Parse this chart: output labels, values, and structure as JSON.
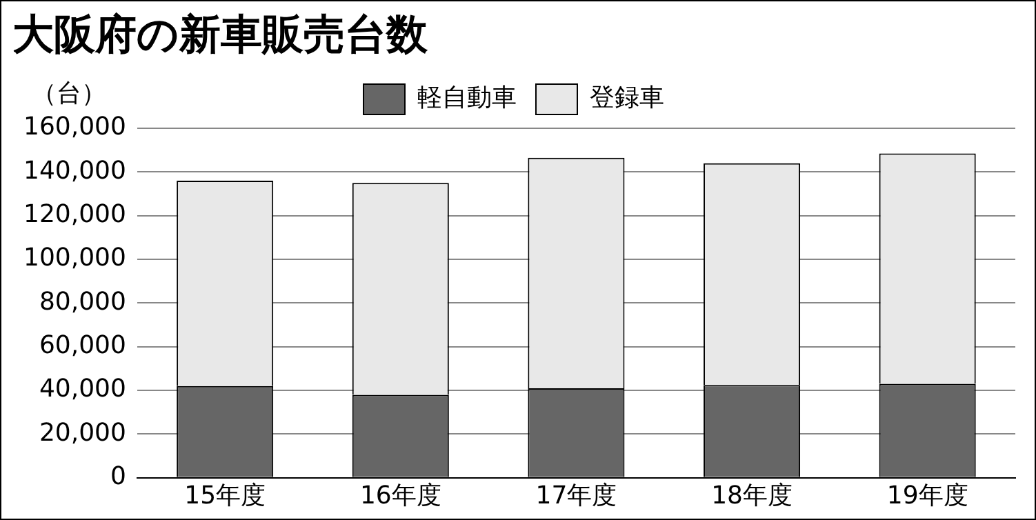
{
  "chart_data": {
    "type": "bar",
    "title": "大阪府の新車販売台数",
    "ylabel": "（台）",
    "categories": [
      "15年度",
      "16年度",
      "17年度",
      "18年度",
      "19年度"
    ],
    "stacked": true,
    "series": [
      {
        "name": "軽自動車",
        "color": "#666666",
        "values": [
          42000,
          38000,
          41000,
          42500,
          43000
        ]
      },
      {
        "name": "登録車",
        "color": "#e8e8e8",
        "values": [
          94000,
          97000,
          105500,
          101500,
          105500
        ]
      }
    ],
    "ylim": [
      0,
      160000
    ],
    "yticks": [
      0,
      {
        "value": 20000,
        "label": "20,000"
      },
      {
        "value": 40000,
        "label": "40,000"
      },
      {
        "value": 60000,
        "label": "60,000"
      },
      {
        "value": 80000,
        "label": "80,000"
      },
      {
        "value": 100000,
        "label": "100,000"
      },
      {
        "value": 120000,
        "label": "120,000"
      },
      {
        "value": 140000,
        "label": "140,000"
      },
      {
        "value": 160000,
        "label": "160,000"
      }
    ],
    "grid": "y",
    "legend": "top"
  }
}
